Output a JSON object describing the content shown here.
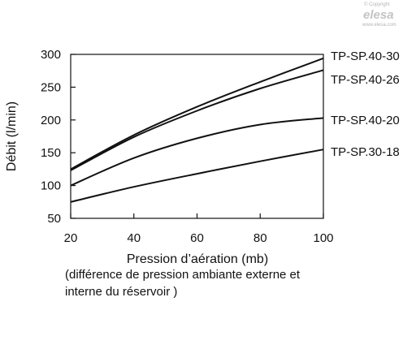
{
  "watermark": {
    "copyright": "© Copyright",
    "brand": "elesa",
    "url": "www.elesa.com"
  },
  "chart_data": {
    "type": "line",
    "title": "",
    "xlabel": "Pression d’aération (mb)",
    "ylabel": "Débit (l/min)",
    "note_lines": [
      "(différence de pression ambiante externe et",
      "interne du réservoir )"
    ],
    "xlim": [
      20,
      100
    ],
    "ylim": [
      50,
      300
    ],
    "xticks": [
      20,
      40,
      60,
      80,
      100
    ],
    "yticks": [
      50,
      100,
      150,
      200,
      250,
      300
    ],
    "grid": false,
    "legend": "right-inline",
    "x": [
      20,
      40,
      60,
      80,
      100
    ],
    "series": [
      {
        "name": "TP-SP.40-30",
        "values": [
          125,
          177,
          220,
          258,
          294
        ]
      },
      {
        "name": "TP-SP.40-26",
        "values": [
          123,
          174,
          214,
          248,
          276
        ]
      },
      {
        "name": "TP-SP.40-20",
        "values": [
          100,
          142,
          172,
          193,
          203
        ]
      },
      {
        "name": "TP-SP.30-18",
        "values": [
          75,
          98,
          118,
          137,
          155
        ]
      }
    ]
  }
}
